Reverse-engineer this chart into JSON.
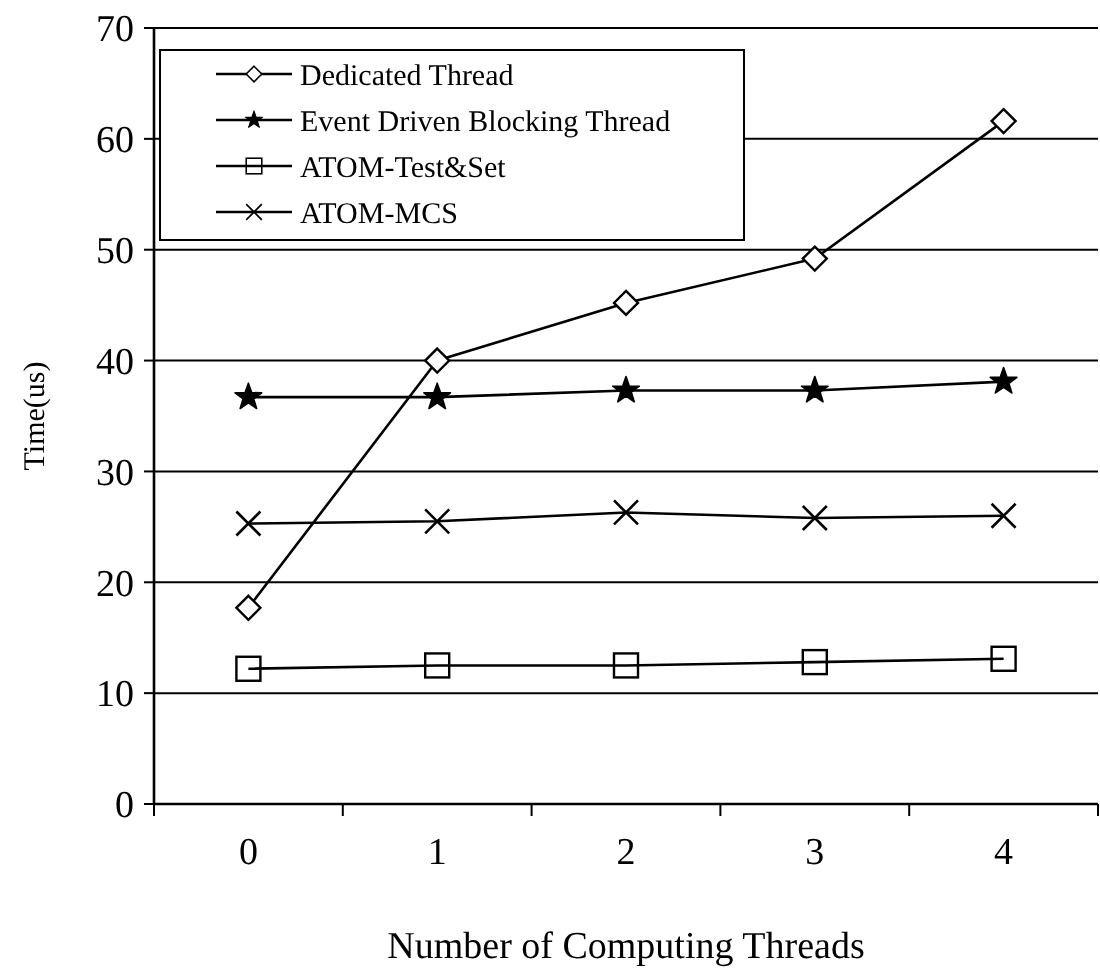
{
  "chart_data": {
    "type": "line",
    "xlabel": "Number of Computing Threads",
    "ylabel": "Time(us)",
    "categories": [
      "0",
      "1",
      "2",
      "3",
      "4"
    ],
    "ylim": [
      0,
      70
    ],
    "yticks": [
      0,
      10,
      20,
      30,
      40,
      50,
      60,
      70
    ],
    "grid": "y",
    "legend": "top left",
    "series": [
      {
        "name": "Dedicated Thread",
        "color": "#000000",
        "marker": "diamond",
        "values": [
          17.7,
          40.0,
          45.2,
          49.2,
          61.6
        ]
      },
      {
        "name": "Event Driven Blocking Thread",
        "color": "#000000",
        "marker": "star",
        "values": [
          36.7,
          36.7,
          37.3,
          37.3,
          38.1
        ]
      },
      {
        "name": "ATOM-Test&Set",
        "color": "#000000",
        "marker": "square",
        "values": [
          12.2,
          12.5,
          12.5,
          12.8,
          13.1
        ]
      },
      {
        "name": "ATOM-MCS",
        "color": "#000000",
        "marker": "cross",
        "values": [
          25.3,
          25.5,
          26.3,
          25.8,
          26.0
        ]
      }
    ]
  }
}
